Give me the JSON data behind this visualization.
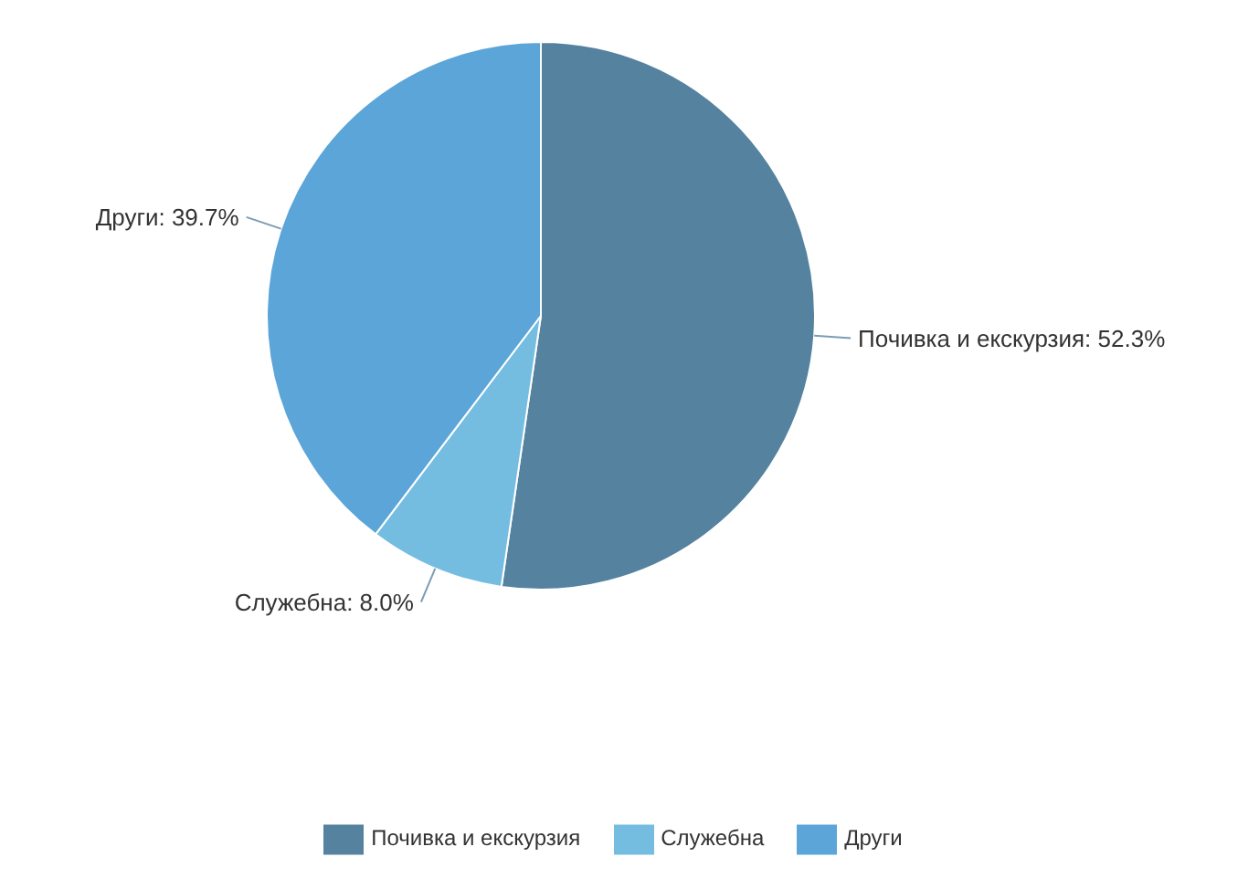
{
  "chart_data": {
    "type": "pie",
    "categories": [
      "Почивка и екскурзия",
      "Служебна",
      "Други"
    ],
    "values": [
      52.3,
      8.0,
      39.7
    ],
    "value_labels": [
      "Почивка и екскурзия: 52.3%",
      "Служебна: 8.0%",
      "Други: 39.7%"
    ],
    "colors": [
      "#54829f",
      "#74bde0",
      "#5ca5d9"
    ],
    "legend": "bottom"
  }
}
